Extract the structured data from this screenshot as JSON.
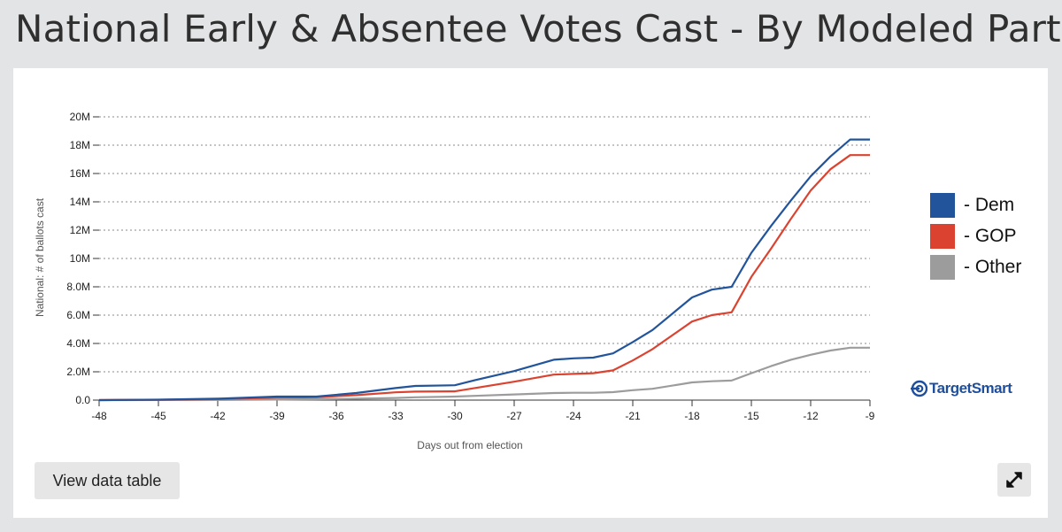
{
  "page": {
    "title": "National Early & Absentee Votes Cast - By Modeled Party"
  },
  "controls": {
    "view_table_label": "View data table"
  },
  "brand": {
    "name": "TargetSmart"
  },
  "colors": {
    "dem": "#22549b",
    "gop": "#db4330",
    "other": "#9c9c9c"
  },
  "chart_data": {
    "type": "line",
    "title": "National Early & Absentee Votes Cast - By Modeled Party",
    "xlabel": "Days out from election",
    "ylabel": "National: # of ballots cast",
    "xlim": [
      -48,
      -9
    ],
    "ylim": [
      0,
      20000000
    ],
    "x_ticks": [
      -48,
      -45,
      -42,
      -39,
      -36,
      -33,
      -30,
      -27,
      -24,
      -21,
      -18,
      -15,
      -12,
      -9
    ],
    "x_tick_labels": [
      "-48",
      "-45",
      "-42",
      "-39",
      "-36",
      "-33",
      "-30",
      "-27",
      "-24",
      "-21",
      "-18",
      "-15",
      "-12",
      "-9"
    ],
    "y_ticks": [
      0,
      2000000,
      4000000,
      6000000,
      8000000,
      10000000,
      12000000,
      14000000,
      16000000,
      18000000,
      20000000
    ],
    "y_tick_labels": [
      "0.0",
      "2.0M",
      "4.0M",
      "6.0M",
      "8.0M",
      "10M",
      "12M",
      "14M",
      "16M",
      "18M",
      "20M"
    ],
    "grid": true,
    "legend_position": "right",
    "series": [
      {
        "name": "Dem",
        "legend_label": "- Dem",
        "color": "#22549b",
        "x": [
          -48,
          -45,
          -42,
          -39,
          -37,
          -35,
          -33,
          -32,
          -30,
          -29,
          -27,
          -25,
          -24,
          -23,
          -22,
          -21,
          -20,
          -18,
          -17,
          -16,
          -15,
          -14,
          -13,
          -12,
          -11,
          -10,
          -9
        ],
        "values": [
          0,
          30000,
          100000,
          250000,
          250000,
          500000,
          850000,
          1000000,
          1050000,
          1400000,
          2050000,
          2850000,
          2950000,
          3000000,
          3300000,
          4100000,
          4950000,
          7250000,
          7800000,
          8000000,
          10400000,
          12300000,
          14100000,
          15800000,
          17200000,
          18400000,
          18400000
        ]
      },
      {
        "name": "GOP",
        "legend_label": "- GOP",
        "color": "#db4330",
        "x": [
          -48,
          -45,
          -42,
          -39,
          -37,
          -35,
          -33,
          -32,
          -30,
          -29,
          -27,
          -25,
          -24,
          -23,
          -22,
          -21,
          -20,
          -18,
          -17,
          -16,
          -15,
          -14,
          -13,
          -12,
          -11,
          -10,
          -9
        ],
        "values": [
          0,
          25000,
          70000,
          180000,
          200000,
          350000,
          550000,
          600000,
          620000,
          850000,
          1300000,
          1800000,
          1850000,
          1900000,
          2100000,
          2800000,
          3600000,
          5550000,
          6000000,
          6200000,
          8700000,
          10700000,
          12800000,
          14800000,
          16300000,
          17300000,
          17300000
        ]
      },
      {
        "name": "Other",
        "legend_label": "- Other",
        "color": "#9c9c9c",
        "x": [
          -48,
          -45,
          -42,
          -39,
          -37,
          -35,
          -33,
          -32,
          -30,
          -29,
          -27,
          -25,
          -24,
          -23,
          -22,
          -21,
          -20,
          -18,
          -17,
          -16,
          -15,
          -14,
          -13,
          -12,
          -11,
          -10,
          -9
        ],
        "values": [
          0,
          5000,
          15000,
          40000,
          60000,
          100000,
          150000,
          200000,
          250000,
          300000,
          400000,
          500000,
          520000,
          520000,
          560000,
          700000,
          800000,
          1250000,
          1330000,
          1380000,
          1900000,
          2400000,
          2850000,
          3200000,
          3500000,
          3700000,
          3700000
        ]
      }
    ]
  }
}
